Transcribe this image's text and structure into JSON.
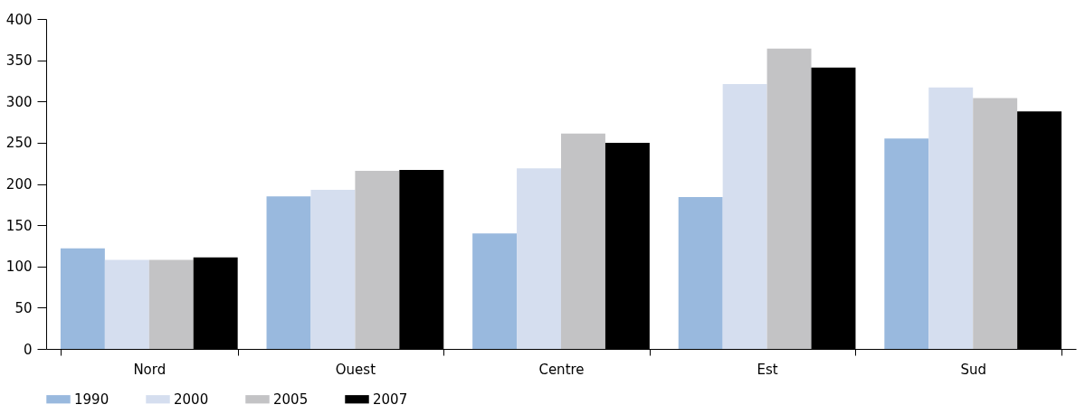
{
  "chart_data": {
    "type": "bar",
    "categories": [
      "Nord",
      "Ouest",
      "Centre",
      "Est",
      "Sud"
    ],
    "series": [
      {
        "name": "1990",
        "color": "#99b9de",
        "values": [
          122,
          185,
          140,
          184,
          255
        ]
      },
      {
        "name": "2000",
        "color": "#d5deef",
        "values": [
          108,
          193,
          219,
          321,
          317
        ]
      },
      {
        "name": "2005",
        "color": "#c3c3c5",
        "values": [
          108,
          216,
          261,
          364,
          304
        ]
      },
      {
        "name": "2007",
        "color": "#000000",
        "values": [
          111,
          217,
          250,
          341,
          288
        ]
      }
    ],
    "ylim": [
      0,
      400
    ],
    "yticks": [
      0,
      50,
      100,
      150,
      200,
      250,
      300,
      350,
      400
    ],
    "grid": false,
    "legend": "bottom"
  }
}
